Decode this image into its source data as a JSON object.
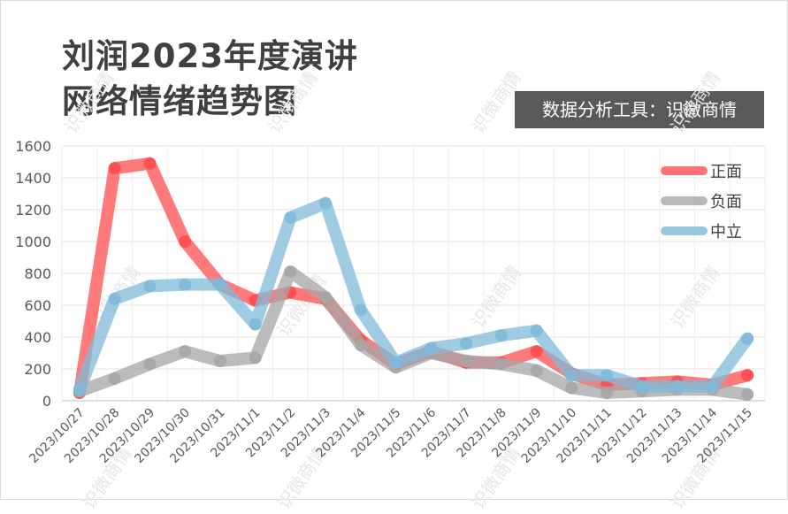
{
  "title_line1": "刘润2023年度演讲",
  "title_line2": "网络情绪趋势图",
  "badge_text": "数据分析工具：识微商情",
  "watermark_text": "识微商情",
  "chart_data": {
    "type": "line",
    "categories": [
      "2023/10/27",
      "2023/10/28",
      "2023/10/29",
      "2023/10/30",
      "2023/10/31",
      "2023/11/1",
      "2023/11/2",
      "2023/11/3",
      "2023/11/4",
      "2023/11/5",
      "2023/11/6",
      "2023/11/7",
      "2023/11/8",
      "2023/11/9",
      "2023/11/10",
      "2023/11/11",
      "2023/11/12",
      "2023/11/13",
      "2023/11/14",
      "2023/11/15"
    ],
    "series": [
      {
        "name": "正面",
        "color": "#ff4d4f",
        "values": [
          50,
          1460,
          1490,
          1000,
          730,
          630,
          680,
          640,
          380,
          230,
          310,
          240,
          240,
          310,
          170,
          100,
          110,
          120,
          100,
          160
        ]
      },
      {
        "name": "负面",
        "color": "#a6a6a6",
        "values": [
          60,
          140,
          230,
          310,
          250,
          270,
          810,
          650,
          350,
          210,
          300,
          250,
          230,
          190,
          80,
          50,
          60,
          70,
          70,
          40
        ]
      },
      {
        "name": "中立",
        "color": "#7fb9d9",
        "values": [
          70,
          640,
          720,
          730,
          730,
          480,
          1150,
          1240,
          570,
          240,
          330,
          360,
          410,
          440,
          160,
          160,
          90,
          90,
          90,
          390
        ]
      }
    ],
    "yticks": [
      0,
      200,
      400,
      600,
      800,
      1000,
      1200,
      1400,
      1600
    ],
    "ylim": [
      0,
      1600
    ],
    "legend_position": "top-right",
    "grid": true
  }
}
